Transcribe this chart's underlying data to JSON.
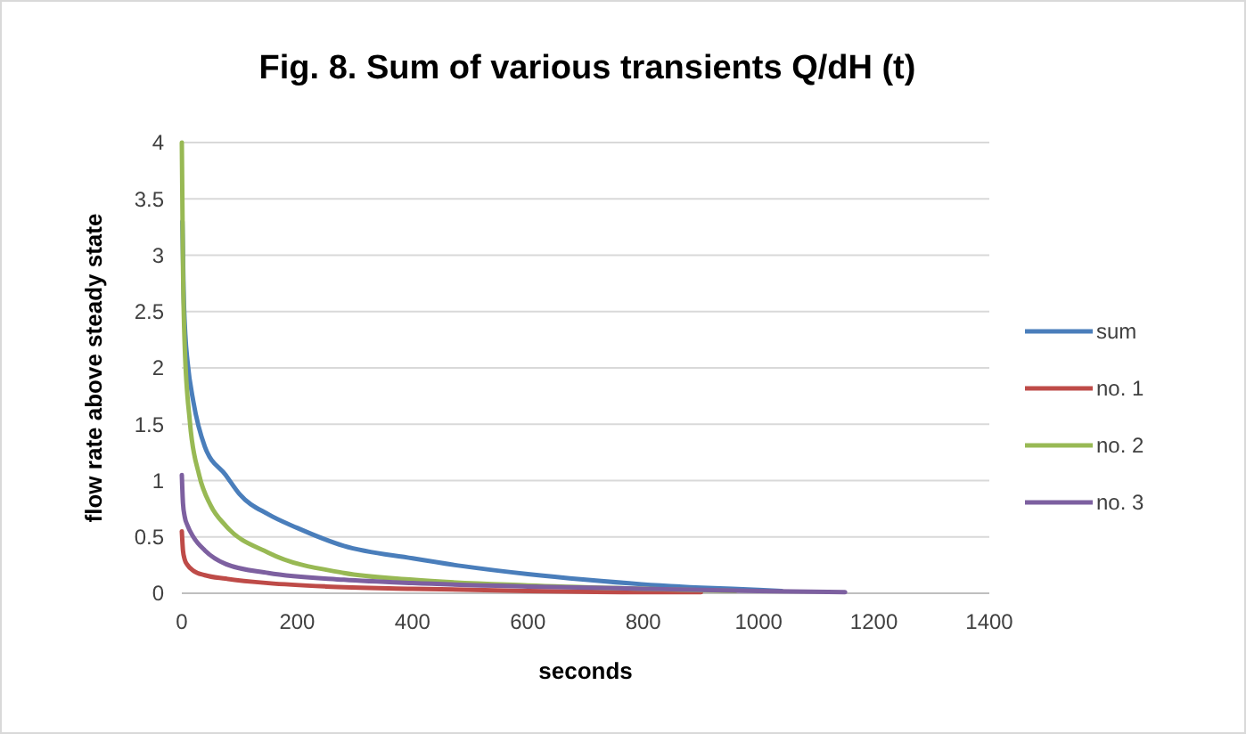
{
  "chart_data": {
    "type": "line",
    "title": "Fig. 8.  Sum of various transients Q/dH (t)",
    "xlabel": "seconds",
    "ylabel": "flow rate above steady state",
    "xlim": [
      0,
      1400
    ],
    "ylim": [
      0,
      4
    ],
    "xticks": [
      0,
      200,
      400,
      600,
      800,
      1000,
      1200,
      1400
    ],
    "yticks": [
      0,
      0.5,
      1,
      1.5,
      2,
      2.5,
      3,
      3.5,
      4
    ],
    "grid": "y",
    "legend": "right",
    "marker": "none",
    "line_style": "solid",
    "series": [
      {
        "name": "sum",
        "color": "#4a7ebb",
        "x": [
          1,
          3,
          6,
          10,
          20,
          40,
          76,
          100,
          150,
          200,
          281,
          400,
          488,
          600,
          700,
          797,
          900,
          1000,
          1040
        ],
        "values": [
          3.3,
          2.7,
          2.3,
          2.05,
          1.7,
          1.3,
          1.05,
          0.88,
          0.7,
          0.58,
          0.42,
          0.31,
          0.24,
          0.17,
          0.12,
          0.08,
          0.05,
          0.03,
          0.02
        ]
      },
      {
        "name": "no. 1",
        "color": "#be4b48",
        "x": [
          0,
          2,
          5,
          10,
          20,
          40,
          76,
          150,
          250,
          400,
          600,
          800,
          900
        ],
        "values": [
          0.55,
          0.38,
          0.3,
          0.25,
          0.2,
          0.16,
          0.13,
          0.09,
          0.06,
          0.04,
          0.02,
          0.01,
          0.01
        ]
      },
      {
        "name": "no. 2",
        "color": "#98b954",
        "x": [
          0,
          2,
          5,
          14,
          30,
          50,
          76,
          150,
          281,
          400,
          600,
          800,
          960
        ],
        "values": [
          4,
          2.9,
          2.2,
          1.52,
          1.05,
          0.78,
          0.6,
          0.36,
          0.18,
          0.12,
          0.07,
          0.04,
          0.02
        ]
      },
      {
        "name": "no. 3",
        "color": "#7d60a0",
        "x": [
          0,
          2,
          5,
          10,
          20,
          40,
          76,
          150,
          281,
          400,
          600,
          800,
          1000,
          1150
        ],
        "values": [
          1.05,
          0.8,
          0.68,
          0.6,
          0.5,
          0.38,
          0.26,
          0.18,
          0.12,
          0.09,
          0.06,
          0.04,
          0.02,
          0.01
        ]
      }
    ]
  }
}
